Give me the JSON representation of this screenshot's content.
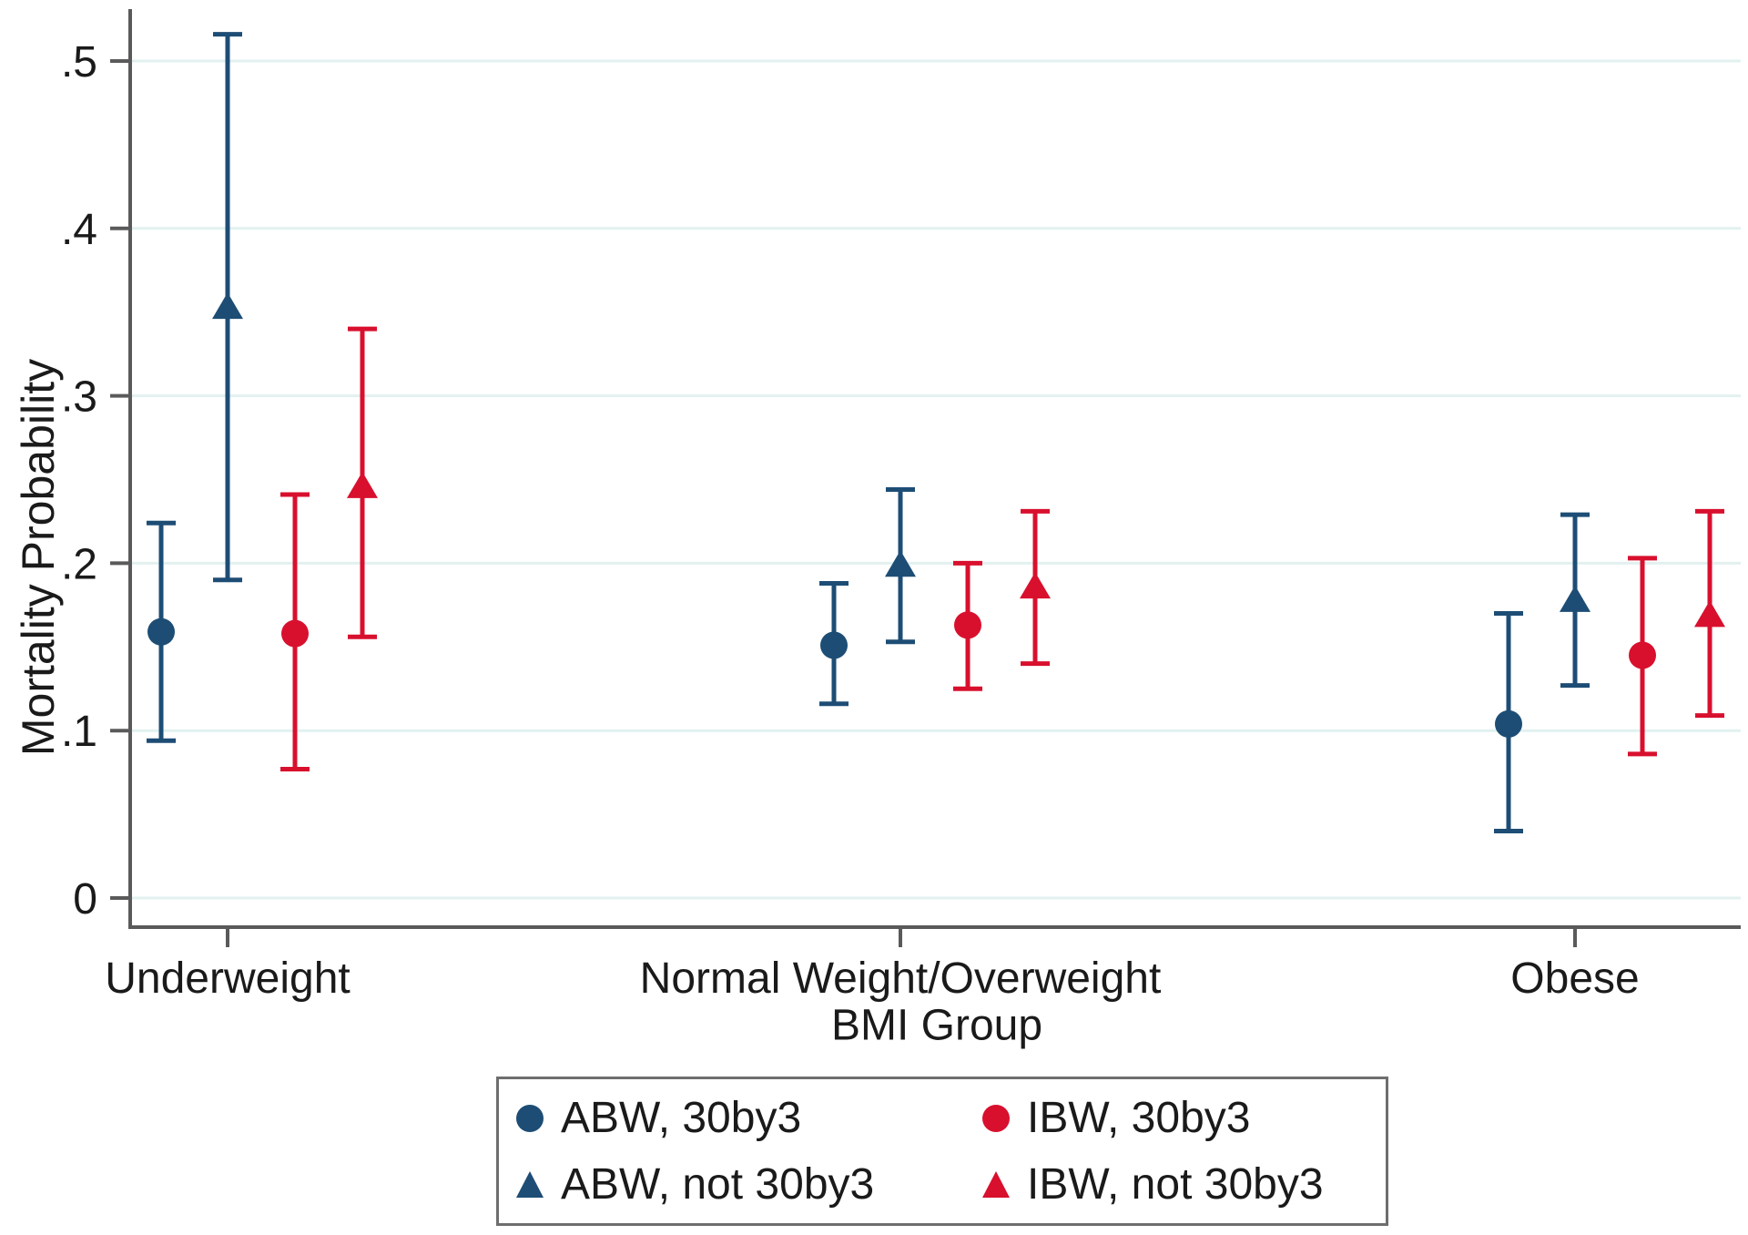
{
  "chart_data": {
    "type": "scatter",
    "subtype": "point-estimates-with-95ci",
    "title": "",
    "xlabel": "BMI Group",
    "ylabel": "Mortality Probability",
    "categories": [
      "Underweight",
      "Normal Weight/Overweight",
      "Obese"
    ],
    "yticks": {
      "values": [
        0,
        0.1,
        0.2,
        0.3,
        0.4,
        0.5
      ],
      "labels": [
        "0",
        ".1",
        ".2",
        ".3",
        ".4",
        ".5"
      ]
    },
    "ylim": [
      -0.017,
      0.531
    ],
    "grid": true,
    "grid_color": "#e2f1f0",
    "axis_color": "#5a5a5a",
    "legend_position": "bottom",
    "series": [
      {
        "name": "ABW, 30by3",
        "marker": "circle",
        "color": "#1d4d75",
        "points": [
          {
            "category": "Underweight",
            "est": 0.159,
            "lo": 0.094,
            "hi": 0.224
          },
          {
            "category": "Normal Weight/Overweight",
            "est": 0.151,
            "lo": 0.116,
            "hi": 0.188
          },
          {
            "category": "Obese",
            "est": 0.104,
            "lo": 0.04,
            "hi": 0.17
          }
        ]
      },
      {
        "name": "ABW, not 30by3",
        "marker": "triangle",
        "color": "#1d4d75",
        "points": [
          {
            "category": "Underweight",
            "est": 0.353,
            "lo": 0.19,
            "hi": 0.516
          },
          {
            "category": "Normal Weight/Overweight",
            "est": 0.199,
            "lo": 0.153,
            "hi": 0.244
          },
          {
            "category": "Obese",
            "est": 0.178,
            "lo": 0.127,
            "hi": 0.229
          }
        ]
      },
      {
        "name": "IBW, 30by3",
        "marker": "circle",
        "color": "#d8102e",
        "points": [
          {
            "category": "Underweight",
            "est": 0.158,
            "lo": 0.077,
            "hi": 0.241
          },
          {
            "category": "Normal Weight/Overweight",
            "est": 0.163,
            "lo": 0.125,
            "hi": 0.2
          },
          {
            "category": "Obese",
            "est": 0.145,
            "lo": 0.086,
            "hi": 0.203
          }
        ]
      },
      {
        "name": "IBW, not 30by3",
        "marker": "triangle",
        "color": "#d8102e",
        "points": [
          {
            "category": "Underweight",
            "est": 0.246,
            "lo": 0.156,
            "hi": 0.34
          },
          {
            "category": "Normal Weight/Overweight",
            "est": 0.186,
            "lo": 0.14,
            "hi": 0.231
          },
          {
            "category": "Obese",
            "est": 0.169,
            "lo": 0.109,
            "hi": 0.231
          }
        ]
      }
    ]
  }
}
